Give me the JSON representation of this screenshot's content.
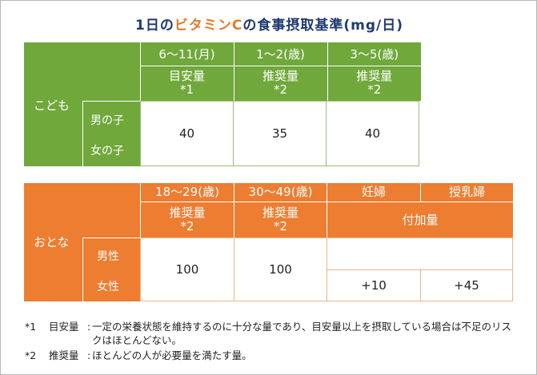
{
  "title": {
    "prefix": "1日の",
    "accent": "ビタミンC",
    "suffix": "の食事摂取基準(mg/日)"
  },
  "kids": {
    "group_label": "こども",
    "columns": [
      {
        "age": "6～11(月)",
        "basis": "目安量",
        "note": "*1"
      },
      {
        "age": "1～2(歳)",
        "basis": "推奨量",
        "note": "*2"
      },
      {
        "age": "3～5(歳)",
        "basis": "推奨量",
        "note": "*2"
      }
    ],
    "rows": [
      "男の子",
      "女の子"
    ],
    "values": [
      "40",
      "35",
      "40"
    ]
  },
  "adults": {
    "group_label": "おとな",
    "columns": [
      {
        "age": "18～29(歳)",
        "basis": "推奨量",
        "note": "*2"
      },
      {
        "age": "30～49(歳)",
        "basis": "推奨量",
        "note": "*2"
      }
    ],
    "pregnant_label": "妊婦",
    "lactating_label": "授乳婦",
    "added_label": "付加量",
    "rows": [
      "男性",
      "女性"
    ],
    "values": [
      "100",
      "100"
    ],
    "pregnant_add": "+10",
    "lactating_add": "+45"
  },
  "notes": [
    {
      "mark": "*1",
      "term": "目安量",
      "sep": ":",
      "text": "一定の栄養状態を維持するのに十分な量であり、目安量以上を摂取している場合は不足のリスクはほとんどない。"
    },
    {
      "mark": "*2",
      "term": "推奨量",
      "sep": ":",
      "text": "ほとんどの人が必要量を満たす量。"
    }
  ],
  "colors": {
    "green": "#70a83b",
    "orange": "#ed7d31",
    "title": "#1f3b6e",
    "accent": "#e07a2e"
  }
}
